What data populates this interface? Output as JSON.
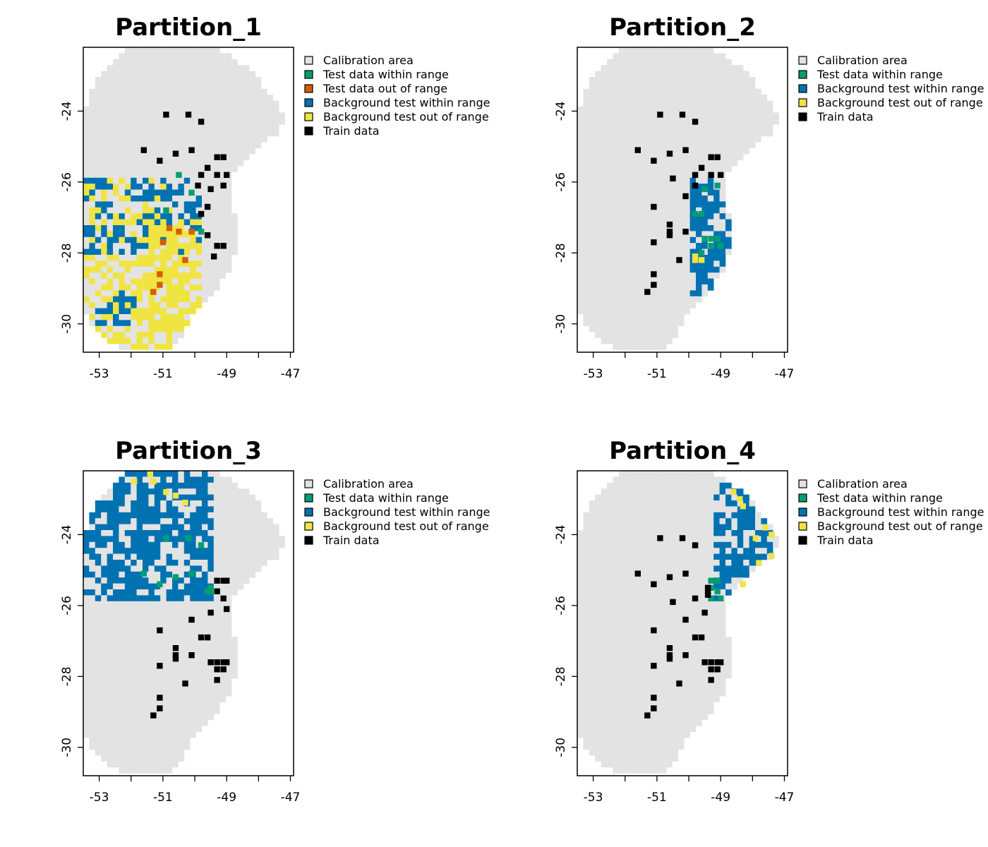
{
  "chart_data": [
    {
      "type": "heatmap",
      "title": "Partition_1",
      "xlim": [
        -53.5,
        -46.9
      ],
      "ylim": [
        -30.8,
        -22.2
      ],
      "x_ticks": [
        -53,
        -51,
        -49,
        -47
      ],
      "x_tick_labels": [
        "-53",
        "-51",
        "-49",
        "-47"
      ],
      "x_minor_ticks": [
        -52,
        -50,
        -48
      ],
      "y_ticks": [
        -24,
        -26,
        -28,
        -30
      ],
      "y_tick_labels": [
        "-24",
        "-26",
        "-28",
        "-30"
      ],
      "legend": [
        {
          "label": "Calibration area",
          "color": "#e3e3e3"
        },
        {
          "label": "Test data within range",
          "color": "#009e73"
        },
        {
          "label": "Test data out of range",
          "color": "#d55e00"
        },
        {
          "label": "Background test within range",
          "color": "#0072b2"
        },
        {
          "label": "Background test out of range",
          "color": "#f0e442"
        },
        {
          "label": "Train data",
          "color": "#000000"
        }
      ],
      "regions": [
        {
          "category": "Background test out of range",
          "lon": [
            -53.5,
            -50.8
          ],
          "lat": [
            -30.8,
            -25.9
          ],
          "density": 0.55
        },
        {
          "category": "Background test within range",
          "lon": [
            -53.5,
            -49.8
          ],
          "lat": [
            -28.0,
            -25.9
          ],
          "density": 0.35
        },
        {
          "category": "Background test within range",
          "lon": [
            -53.2,
            -51.8
          ],
          "lat": [
            -30.0,
            -29.0
          ],
          "density": 0.55
        },
        {
          "category": "Background test out of range",
          "lon": [
            -51.5,
            -49.8
          ],
          "lat": [
            -30.2,
            -27.0
          ],
          "density": 0.55
        }
      ],
      "train_points": [
        [
          -50.9,
          -24.1
        ],
        [
          -50.2,
          -24.1
        ],
        [
          -49.8,
          -24.3
        ],
        [
          -51.6,
          -25.1
        ],
        [
          -51.1,
          -25.4
        ],
        [
          -50.6,
          -25.2
        ],
        [
          -50.1,
          -25.1
        ],
        [
          -49.6,
          -25.6
        ],
        [
          -49.3,
          -25.3
        ],
        [
          -49.1,
          -25.3
        ],
        [
          -49.3,
          -25.8
        ],
        [
          -49.8,
          -25.8
        ],
        [
          -49.0,
          -25.8
        ],
        [
          -49.9,
          -26.1
        ],
        [
          -49.1,
          -26.1
        ],
        [
          -49.5,
          -26.2
        ],
        [
          -49.6,
          -26.7
        ],
        [
          -49.6,
          -27.5
        ],
        [
          -49.3,
          -27.8
        ],
        [
          -49.1,
          -27.8
        ],
        [
          -49.4,
          -28.1
        ],
        [
          -49.8,
          -26.9
        ]
      ],
      "test_within": [
        [
          -50.5,
          -25.8
        ],
        [
          -50.9,
          -26.8
        ],
        [
          -49.8,
          -27.4
        ],
        [
          -50.1,
          -26.3
        ]
      ],
      "test_out": [
        [
          -50.5,
          -27.4
        ],
        [
          -50.1,
          -27.4
        ],
        [
          -51.0,
          -27.7
        ],
        [
          -50.8,
          -27.3
        ],
        [
          -50.3,
          -28.2
        ],
        [
          -51.1,
          -28.6
        ],
        [
          -51.1,
          -28.9
        ],
        [
          -51.3,
          -29.1
        ]
      ]
    },
    {
      "type": "heatmap",
      "title": "Partition_2",
      "xlim": [
        -53.5,
        -46.9
      ],
      "ylim": [
        -30.8,
        -22.2
      ],
      "x_ticks": [
        -53,
        -51,
        -49,
        -47
      ],
      "x_tick_labels": [
        "-53",
        "-51",
        "-49",
        "-47"
      ],
      "x_minor_ticks": [
        -52,
        -50,
        -48
      ],
      "y_ticks": [
        -24,
        -26,
        -28,
        -30
      ],
      "y_tick_labels": [
        "-24",
        "-26",
        "-28",
        "-30"
      ],
      "legend": [
        {
          "label": "Calibration area",
          "color": "#e3e3e3"
        },
        {
          "label": "Test data within range",
          "color": "#009e73"
        },
        {
          "label": "Background test within range",
          "color": "#0072b2"
        },
        {
          "label": "Background test out of range",
          "color": "#f0e442"
        },
        {
          "label": "Train data",
          "color": "#000000"
        }
      ],
      "regions": [
        {
          "category": "Background test within range",
          "lon": [
            -49.9,
            -48.3
          ],
          "lat": [
            -29.3,
            -25.9
          ],
          "density": 0.65
        }
      ],
      "train_points": [
        [
          -50.9,
          -24.1
        ],
        [
          -50.2,
          -24.1
        ],
        [
          -49.8,
          -24.3
        ],
        [
          -51.6,
          -25.1
        ],
        [
          -51.1,
          -25.4
        ],
        [
          -50.6,
          -25.2
        ],
        [
          -50.1,
          -25.1
        ],
        [
          -49.6,
          -25.6
        ],
        [
          -49.3,
          -25.3
        ],
        [
          -49.1,
          -25.3
        ],
        [
          -49.3,
          -25.8
        ],
        [
          -49.8,
          -25.8
        ],
        [
          -49.0,
          -25.8
        ],
        [
          -50.5,
          -25.9
        ],
        [
          -50.1,
          -26.4
        ],
        [
          -51.1,
          -26.7
        ],
        [
          -50.6,
          -27.2
        ],
        [
          -50.6,
          -27.4
        ],
        [
          -50.6,
          -27.5
        ],
        [
          -50.1,
          -27.4
        ],
        [
          -51.1,
          -27.7
        ],
        [
          -50.3,
          -28.2
        ],
        [
          -51.1,
          -28.6
        ],
        [
          -51.1,
          -28.9
        ],
        [
          -51.3,
          -29.1
        ],
        [
          -49.8,
          -26.1
        ]
      ],
      "test_within": [
        [
          -49.1,
          -26.1
        ],
        [
          -49.5,
          -26.2
        ],
        [
          -49.6,
          -26.9
        ],
        [
          -49.8,
          -26.9
        ],
        [
          -49.5,
          -27.6
        ],
        [
          -49.3,
          -27.6
        ],
        [
          -49.1,
          -27.6
        ],
        [
          -49.0,
          -27.8
        ],
        [
          -49.3,
          -27.8
        ],
        [
          -49.6,
          -28.0
        ]
      ],
      "out_points": [
        [
          -49.8,
          -28.1
        ],
        [
          -49.8,
          -28.2
        ],
        [
          -49.6,
          -28.2
        ]
      ]
    },
    {
      "type": "heatmap",
      "title": "Partition_3",
      "xlim": [
        -53.5,
        -46.9
      ],
      "ylim": [
        -30.8,
        -22.2
      ],
      "x_ticks": [
        -53,
        -51,
        -49,
        -47
      ],
      "x_tick_labels": [
        "-53",
        "-51",
        "-49",
        "-47"
      ],
      "x_minor_ticks": [
        -52,
        -50,
        -48
      ],
      "y_ticks": [
        -24,
        -26,
        -28,
        -30
      ],
      "y_tick_labels": [
        "-24",
        "-26",
        "-28",
        "-30"
      ],
      "legend": [
        {
          "label": "Calibration area",
          "color": "#e3e3e3"
        },
        {
          "label": "Test data within range",
          "color": "#009e73"
        },
        {
          "label": "Background test within range",
          "color": "#0072b2"
        },
        {
          "label": "Background test out of range",
          "color": "#f0e442"
        },
        {
          "label": "Train data",
          "color": "#000000"
        }
      ],
      "regions": [
        {
          "category": "Background test within range",
          "lon": [
            -53.5,
            -49.4
          ],
          "lat": [
            -25.9,
            -22.2
          ],
          "density": 0.7
        }
      ],
      "train_points": [
        [
          -49.3,
          -25.3
        ],
        [
          -49.1,
          -25.3
        ],
        [
          -49.0,
          -25.3
        ],
        [
          -49.3,
          -25.6
        ],
        [
          -49.1,
          -25.8
        ],
        [
          -49.0,
          -26.1
        ],
        [
          -49.5,
          -26.2
        ],
        [
          -49.6,
          -26.9
        ],
        [
          -49.8,
          -26.9
        ],
        [
          -50.1,
          -26.4
        ],
        [
          -51.1,
          -26.7
        ],
        [
          -50.6,
          -27.2
        ],
        [
          -50.6,
          -27.4
        ],
        [
          -50.6,
          -27.5
        ],
        [
          -50.1,
          -27.4
        ],
        [
          -51.1,
          -27.7
        ],
        [
          -50.3,
          -28.2
        ],
        [
          -51.1,
          -28.6
        ],
        [
          -51.1,
          -28.9
        ],
        [
          -51.3,
          -29.1
        ],
        [
          -49.5,
          -27.6
        ],
        [
          -49.3,
          -27.6
        ],
        [
          -49.1,
          -27.6
        ],
        [
          -49.0,
          -27.6
        ],
        [
          -49.3,
          -27.8
        ],
        [
          -49.1,
          -27.8
        ],
        [
          -49.3,
          -28.1
        ]
      ],
      "test_within": [
        [
          -50.9,
          -24.1
        ],
        [
          -50.2,
          -24.1
        ],
        [
          -49.8,
          -24.3
        ],
        [
          -51.6,
          -25.1
        ],
        [
          -51.1,
          -25.4
        ],
        [
          -50.6,
          -25.2
        ],
        [
          -50.1,
          -25.1
        ],
        [
          -49.6,
          -25.6
        ],
        [
          -49.5,
          -25.6
        ],
        [
          -49.5,
          -25.5
        ]
      ],
      "out_points": [
        [
          -51.4,
          -22.3
        ],
        [
          -51.3,
          -22.5
        ],
        [
          -51.9,
          -22.5
        ],
        [
          -50.9,
          -22.8
        ],
        [
          -50.6,
          -22.9
        ],
        [
          -50.3,
          -23.1
        ]
      ]
    },
    {
      "type": "heatmap",
      "title": "Partition_4",
      "xlim": [
        -53.5,
        -46.9
      ],
      "ylim": [
        -30.8,
        -22.2
      ],
      "x_ticks": [
        -53,
        -51,
        -49,
        -47
      ],
      "x_tick_labels": [
        "-53",
        "-51",
        "-49",
        "-47"
      ],
      "x_minor_ticks": [
        -52,
        -50,
        -48
      ],
      "y_ticks": [
        -24,
        -26,
        -28,
        -30
      ],
      "y_tick_labels": [
        "-24",
        "-26",
        "-28",
        "-30"
      ],
      "legend": [
        {
          "label": "Calibration area",
          "color": "#e3e3e3"
        },
        {
          "label": "Test data within range",
          "color": "#009e73"
        },
        {
          "label": "Background test within range",
          "color": "#0072b2"
        },
        {
          "label": "Background test out of range",
          "color": "#f0e442"
        },
        {
          "label": "Train data",
          "color": "#000000"
        }
      ],
      "regions": [
        {
          "category": "Background test within range",
          "lon": [
            -49.3,
            -47.4
          ],
          "lat": [
            -26.0,
            -22.6
          ],
          "density": 0.7
        }
      ],
      "train_points": [
        [
          -50.9,
          -24.1
        ],
        [
          -50.2,
          -24.1
        ],
        [
          -49.8,
          -24.3
        ],
        [
          -51.6,
          -25.1
        ],
        [
          -51.1,
          -25.4
        ],
        [
          -50.6,
          -25.2
        ],
        [
          -50.1,
          -25.1
        ],
        [
          -49.8,
          -25.8
        ],
        [
          -49.4,
          -25.5
        ],
        [
          -49.4,
          -25.6
        ],
        [
          -49.4,
          -25.7
        ],
        [
          -50.5,
          -25.9
        ],
        [
          -50.1,
          -26.4
        ],
        [
          -49.5,
          -26.2
        ],
        [
          -49.6,
          -26.9
        ],
        [
          -49.8,
          -26.9
        ],
        [
          -51.1,
          -26.7
        ],
        [
          -50.6,
          -27.2
        ],
        [
          -50.6,
          -27.4
        ],
        [
          -50.6,
          -27.5
        ],
        [
          -50.1,
          -27.4
        ],
        [
          -51.1,
          -27.7
        ],
        [
          -50.3,
          -28.2
        ],
        [
          -51.1,
          -28.6
        ],
        [
          -51.1,
          -28.9
        ],
        [
          -51.3,
          -29.1
        ],
        [
          -49.3,
          -27.6
        ],
        [
          -49.1,
          -27.6
        ],
        [
          -49.0,
          -27.6
        ],
        [
          -49.3,
          -27.8
        ],
        [
          -49.1,
          -27.8
        ],
        [
          -49.3,
          -28.1
        ],
        [
          -49.5,
          -27.6
        ]
      ],
      "test_within": [
        [
          -49.3,
          -25.3
        ],
        [
          -49.1,
          -25.3
        ],
        [
          -49.3,
          -25.5
        ],
        [
          -49.1,
          -25.6
        ],
        [
          -49.0,
          -25.8
        ],
        [
          -49.3,
          -25.8
        ]
      ],
      "out_points": [
        [
          -48.6,
          -22.8
        ],
        [
          -48.4,
          -23.0
        ],
        [
          -48.3,
          -23.2
        ],
        [
          -47.6,
          -23.8
        ],
        [
          -47.4,
          -24.0
        ],
        [
          -47.9,
          -24.1
        ],
        [
          -47.4,
          -24.6
        ],
        [
          -47.8,
          -24.8
        ],
        [
          -48.3,
          -25.4
        ]
      ]
    }
  ]
}
